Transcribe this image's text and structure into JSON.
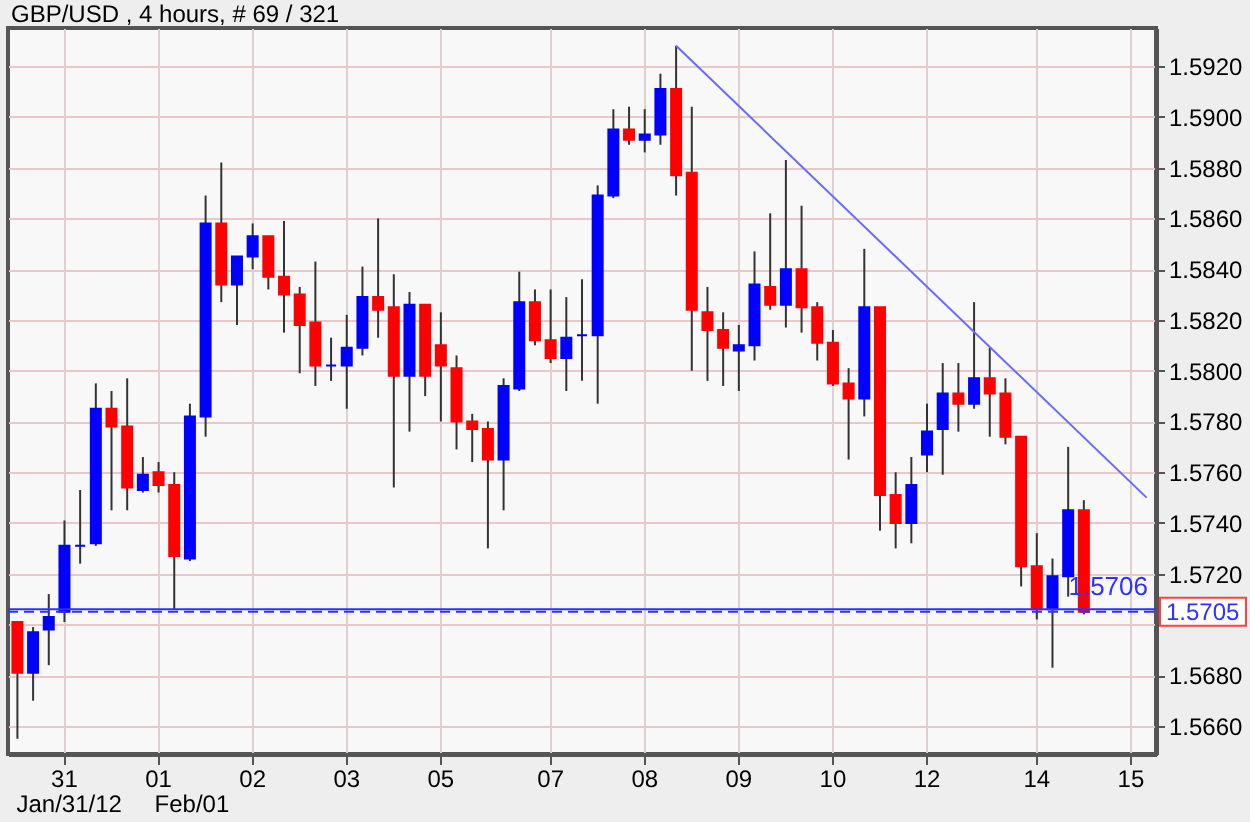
{
  "chart_data": {
    "type": "candlestick",
    "title": "GBP/USD , 4 hours, # 69 / 321",
    "categories": [
      null,
      null,
      null,
      "31",
      null,
      null,
      null,
      null,
      null,
      "01",
      null,
      null,
      null,
      null,
      null,
      "02",
      null,
      null,
      null,
      null,
      null,
      "03",
      null,
      null,
      null,
      null,
      null,
      "05",
      null,
      null,
      null,
      null,
      null,
      null,
      "07",
      null,
      null,
      null,
      null,
      null,
      "08",
      null,
      null,
      null,
      null,
      null,
      "09",
      null,
      null,
      null,
      null,
      null,
      "10",
      null,
      null,
      null,
      null,
      null,
      "12",
      null,
      null,
      null,
      null,
      null,
      null,
      "14",
      null,
      null,
      null,
      null,
      null,
      "15",
      null
    ],
    "ohlc": [
      [
        1.5701,
        1.5701,
        1.5655,
        1.5681
      ],
      [
        1.5681,
        1.5699,
        1.567,
        1.5697
      ],
      [
        1.5698,
        1.5712,
        1.5684,
        1.5703
      ],
      [
        1.5705,
        1.5741,
        1.5701,
        1.5731
      ],
      [
        1.5731,
        1.5753,
        1.5724,
        1.5731
      ],
      [
        1.5732,
        1.5795,
        1.5731,
        1.5785
      ],
      [
        1.5785,
        1.5792,
        1.5745,
        1.5778
      ],
      [
        1.5778,
        1.5797,
        1.5745,
        1.5754
      ],
      [
        1.5753,
        1.5766,
        1.5752,
        1.5759
      ],
      [
        1.576,
        1.5764,
        1.5752,
        1.5755
      ],
      [
        1.5755,
        1.576,
        1.5706,
        1.5727
      ],
      [
        1.5726,
        1.5787,
        1.5725,
        1.5782
      ],
      [
        1.5782,
        1.5869,
        1.5774,
        1.5858
      ],
      [
        1.5858,
        1.5882,
        1.5827,
        1.5834
      ],
      [
        1.5834,
        1.5845,
        1.5818,
        1.5845
      ],
      [
        1.5845,
        1.5858,
        1.584,
        1.5853
      ],
      [
        1.5853,
        1.5853,
        1.5832,
        1.5837
      ],
      [
        1.5837,
        1.5859,
        1.5815,
        1.583
      ],
      [
        1.583,
        1.5833,
        1.5799,
        1.5818
      ],
      [
        1.5819,
        1.5843,
        1.5794,
        1.5802
      ],
      [
        1.5802,
        1.5813,
        1.5796,
        1.5802
      ],
      [
        1.5802,
        1.5822,
        1.5785,
        1.5809
      ],
      [
        1.5809,
        1.5841,
        1.5806,
        1.5829
      ],
      [
        1.5829,
        1.586,
        1.5813,
        1.5824
      ],
      [
        1.5825,
        1.5838,
        1.5754,
        1.5798
      ],
      [
        1.5798,
        1.5831,
        1.5776,
        1.5826
      ],
      [
        1.5826,
        1.5826,
        1.579,
        1.5798
      ],
      [
        1.581,
        1.5823,
        1.578,
        1.5802
      ],
      [
        1.5801,
        1.5806,
        1.5769,
        1.578
      ],
      [
        1.578,
        1.5783,
        1.5764,
        1.5777
      ],
      [
        1.5777,
        1.578,
        1.573,
        1.5765
      ],
      [
        1.5765,
        1.5797,
        1.5745,
        1.5794
      ],
      [
        1.5793,
        1.5839,
        1.5792,
        1.5827
      ],
      [
        1.5827,
        1.5832,
        1.581,
        1.5812
      ],
      [
        1.5812,
        1.5832,
        1.5803,
        1.5805
      ],
      [
        1.5805,
        1.5829,
        1.5792,
        1.5813
      ],
      [
        1.5814,
        1.5836,
        1.5796,
        1.5814
      ],
      [
        1.5814,
        1.5873,
        1.5787,
        1.5869
      ],
      [
        1.5869,
        1.5903,
        1.5868,
        1.5895
      ],
      [
        1.5895,
        1.5904,
        1.5889,
        1.5891
      ],
      [
        1.5891,
        1.5903,
        1.5886,
        1.5893
      ],
      [
        1.5893,
        1.5917,
        1.5889,
        1.5911
      ],
      [
        1.5911,
        1.5928,
        1.5869,
        1.5877
      ],
      [
        1.5878,
        1.5904,
        1.58,
        1.5824
      ],
      [
        1.5823,
        1.5833,
        1.5796,
        1.5816
      ],
      [
        1.5816,
        1.5823,
        1.5794,
        1.5809
      ],
      [
        1.5808,
        1.5818,
        1.5792,
        1.581
      ],
      [
        1.581,
        1.5847,
        1.5804,
        1.5834
      ],
      [
        1.5833,
        1.5862,
        1.5824,
        1.5826
      ],
      [
        1.5826,
        1.5883,
        1.5817,
        1.584
      ],
      [
        1.584,
        1.5865,
        1.5815,
        1.5825
      ],
      [
        1.5825,
        1.5827,
        1.5804,
        1.5811
      ],
      [
        1.5811,
        1.5816,
        1.5794,
        1.5795
      ],
      [
        1.5795,
        1.5801,
        1.5765,
        1.5789
      ],
      [
        1.5789,
        1.5848,
        1.5782,
        1.5825
      ],
      [
        1.5825,
        1.5825,
        1.5737,
        1.5751
      ],
      [
        1.5751,
        1.576,
        1.573,
        1.574
      ],
      [
        1.574,
        1.5766,
        1.5732,
        1.5755
      ],
      [
        1.5767,
        1.5787,
        1.576,
        1.5776
      ],
      [
        1.5777,
        1.5803,
        1.5759,
        1.5791
      ],
      [
        1.5791,
        1.5803,
        1.5776,
        1.5787
      ],
      [
        1.5787,
        1.5827,
        1.5785,
        1.5797
      ],
      [
        1.5797,
        1.5809,
        1.5774,
        1.5791
      ],
      [
        1.5791,
        1.5797,
        1.5771,
        1.5774
      ],
      [
        1.5774,
        1.5774,
        1.5715,
        1.5723
      ],
      [
        1.5723,
        1.5736,
        1.5702,
        1.5706
      ],
      [
        1.5706,
        1.5726,
        1.5683,
        1.5719
      ],
      [
        1.5719,
        1.577,
        1.5711,
        1.5745
      ],
      [
        1.5745,
        1.5749,
        1.5704,
        1.5705
      ],
      null,
      null,
      null,
      null
    ],
    "colors": [
      "#ff0000",
      "#0000ff",
      "#0000ff",
      "#0000ff",
      "#0000ff",
      "#0000ff",
      "#ff0000",
      "#ff0000",
      "#0000ff",
      "#ff0000",
      "#ff0000",
      "#0000ff",
      "#0000ff",
      "#ff0000",
      "#0000ff",
      "#0000ff",
      "#ff0000",
      "#ff0000",
      "#ff0000",
      "#ff0000",
      "#0000ff",
      "#0000ff",
      "#0000ff",
      "#ff0000",
      "#ff0000",
      "#0000ff",
      "#ff0000",
      "#ff0000",
      "#ff0000",
      "#ff0000",
      "#ff0000",
      "#0000ff",
      "#0000ff",
      "#ff0000",
      "#ff0000",
      "#0000ff",
      "#0000ff",
      "#0000ff",
      "#0000ff",
      "#ff0000",
      "#0000ff",
      "#0000ff",
      "#ff0000",
      "#ff0000",
      "#ff0000",
      "#ff0000",
      "#0000ff",
      "#0000ff",
      "#ff0000",
      "#0000ff",
      "#ff0000",
      "#ff0000",
      "#ff0000",
      "#ff0000",
      "#0000ff",
      "#ff0000",
      "#ff0000",
      "#0000ff",
      "#0000ff",
      "#0000ff",
      "#ff0000",
      "#0000ff",
      "#ff0000",
      "#ff0000",
      "#ff0000",
      "#ff0000",
      "#0000ff",
      "#0000ff",
      "#ff0000",
      null,
      null,
      null,
      null
    ],
    "series": [
      {
        "type": "line",
        "values": [
          null,
          null,
          null,
          null,
          null,
          null,
          null,
          null,
          null,
          null,
          null,
          null,
          null,
          null,
          null,
          null,
          null,
          null,
          null,
          null,
          null,
          null,
          null,
          null,
          null,
          null,
          null,
          null,
          null,
          null,
          null,
          null,
          null,
          null,
          null,
          null,
          null,
          null,
          null,
          null,
          null,
          null,
          1.5928,
          null,
          null,
          null,
          null,
          null,
          null,
          null,
          null,
          null,
          null,
          null,
          null,
          null,
          null,
          null,
          null,
          null,
          null,
          null,
          null,
          null,
          null,
          null,
          null,
          null,
          null,
          null,
          null,
          null,
          1.575
        ],
        "color": "#6a6aff"
      }
    ],
    "ref_lines": [
      {
        "axis": "y",
        "value": 1.5706,
        "label": "1.5706",
        "color": "#3030ff",
        "line_style": "solid"
      },
      {
        "axis": "y",
        "value": 1.5705,
        "label": "1.5705",
        "color": "#3030ff",
        "line_style": "dashed"
      }
    ],
    "ylim": [
      1.5649,
      1.5935
    ],
    "yticks": [
      {
        "value": 1.566,
        "label": "1.5660"
      },
      {
        "value": 1.568,
        "label": "1.5680"
      },
      {
        "value": 1.57,
        "label": null
      },
      {
        "value": 1.572,
        "label": "1.5720"
      },
      {
        "value": 1.574,
        "label": "1.5740"
      },
      {
        "value": 1.576,
        "label": "1.5760"
      },
      {
        "value": 1.578,
        "label": "1.5780"
      },
      {
        "value": 1.58,
        "label": "1.5800"
      },
      {
        "value": 1.582,
        "label": "1.5820"
      },
      {
        "value": 1.584,
        "label": "1.5840"
      },
      {
        "value": 1.586,
        "label": "1.5860"
      },
      {
        "value": 1.588,
        "label": "1.5880"
      },
      {
        "value": 1.59,
        "label": "1.5900"
      },
      {
        "value": 1.592,
        "label": "1.5920"
      }
    ],
    "grid": true,
    "annotations": [
      "Jan/31/12",
      "Feb/01"
    ]
  }
}
